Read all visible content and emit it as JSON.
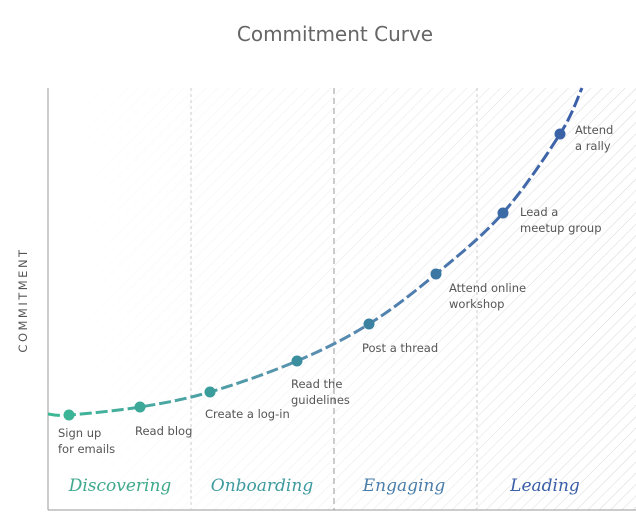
{
  "title": "Commitment Curve",
  "y_axis_label": "COMMITMENT",
  "stages": [
    "Discovering",
    "Onboarding",
    "Engaging",
    "Leading"
  ],
  "steps": [
    {
      "label_lines": [
        "Sign up",
        "for emails"
      ]
    },
    {
      "label_lines": [
        "Read blog"
      ]
    },
    {
      "label_lines": [
        "Create a log-in"
      ]
    },
    {
      "label_lines": [
        "Read the",
        "guidelines"
      ]
    },
    {
      "label_lines": [
        "Post a thread"
      ]
    },
    {
      "label_lines": [
        "Attend online",
        "workshop"
      ]
    },
    {
      "label_lines": [
        "Lead a",
        "meetup group"
      ]
    },
    {
      "label_lines": [
        "Attend",
        "a rally"
      ]
    }
  ]
}
